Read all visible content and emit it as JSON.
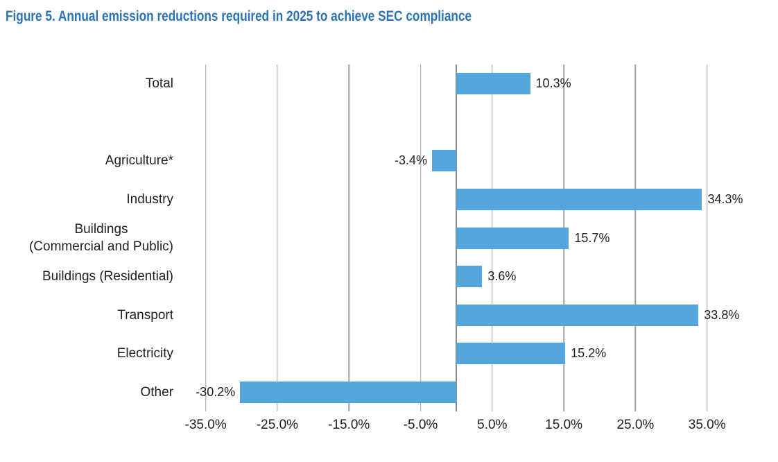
{
  "figure": {
    "title": "Figure 5. Annual emission reductions required in 2025 to achieve SEC compliance"
  },
  "chart_data": {
    "type": "bar",
    "orientation": "horizontal",
    "title": "Figure 5. Annual emission reductions required in 2025 to achieve SEC compliance",
    "unit": "%",
    "categories": [
      "Total",
      "",
      "Agriculture*",
      "Industry",
      "Buildings\n(Commercial and Public)",
      "Buildings (Residential)",
      "Transport",
      "Electricity",
      "Other"
    ],
    "values": [
      10.3,
      null,
      -3.4,
      34.3,
      15.7,
      3.6,
      33.8,
      15.2,
      -30.2
    ],
    "value_labels": [
      "10.3%",
      "",
      "-3.4%",
      "34.3%",
      "15.7%",
      "3.6%",
      "33.8%",
      "15.2%",
      "-30.2%"
    ],
    "x_ticks": [
      {
        "value": -35,
        "label": "-35.0%"
      },
      {
        "value": -25,
        "label": "-25.0%"
      },
      {
        "value": -15,
        "label": "-15.0%"
      },
      {
        "value": -5,
        "label": "-5.0%"
      },
      {
        "value": 5,
        "label": "5.0%"
      },
      {
        "value": 15,
        "label": "15.0%"
      },
      {
        "value": 25,
        "label": "25.0%"
      },
      {
        "value": 35,
        "label": "35.0%"
      }
    ],
    "xlim": [
      -40,
      42
    ],
    "grid": true,
    "legend": false,
    "colors": {
      "bar": "#54a7db",
      "gridline": "#a1a1a1",
      "zero_axis": "#8a8a8a",
      "title": "#2c73b6",
      "text": "#1f1f1f"
    }
  }
}
